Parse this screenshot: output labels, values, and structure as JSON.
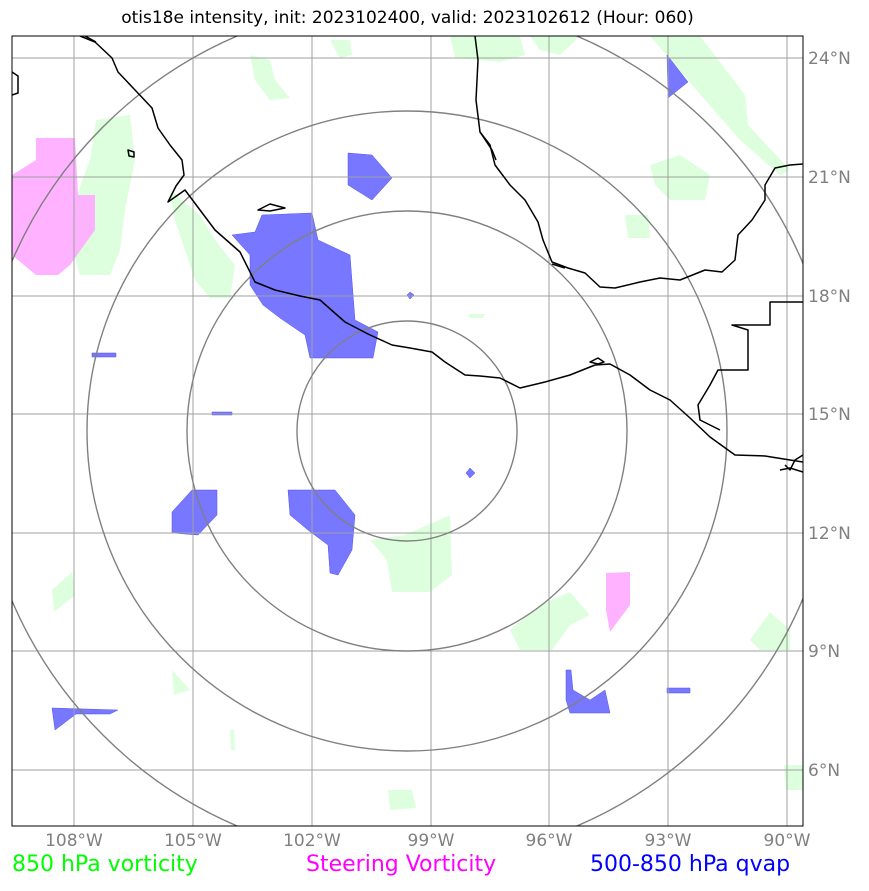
{
  "title": "otis18e intensity, init: 2023102400, valid: 2023102612 (Hour: 060)",
  "lat_ticks": [
    "24°N",
    "21°N",
    "18°N",
    "15°N",
    "12°N",
    "9°N",
    "6°N"
  ],
  "lon_ticks": [
    "108°W",
    "105°W",
    "102°W",
    "99°W",
    "96°W",
    "93°W",
    "90°W"
  ],
  "legend": [
    {
      "label": "850 hPa vorticity",
      "color": "#00ff00"
    },
    {
      "label": "Steering Vorticity",
      "color": "#ff00ff"
    },
    {
      "label": "500-850 hPa qvap",
      "color": "#0000ff"
    }
  ],
  "colors": {
    "vorticity_fill": "#ddffdd",
    "steering_fill": "#ffaaff",
    "qvap_fill": "#7777ff",
    "grid": "#a0a0a0",
    "range_rings": "#808080",
    "coastline": "#000000"
  },
  "map_extent": {
    "lon_min": -109.5,
    "lon_max": -89.5,
    "lat_min": 4.5,
    "lat_max": 24.5
  },
  "storm_center": {
    "lon": -99.5,
    "lat": 14.7
  }
}
